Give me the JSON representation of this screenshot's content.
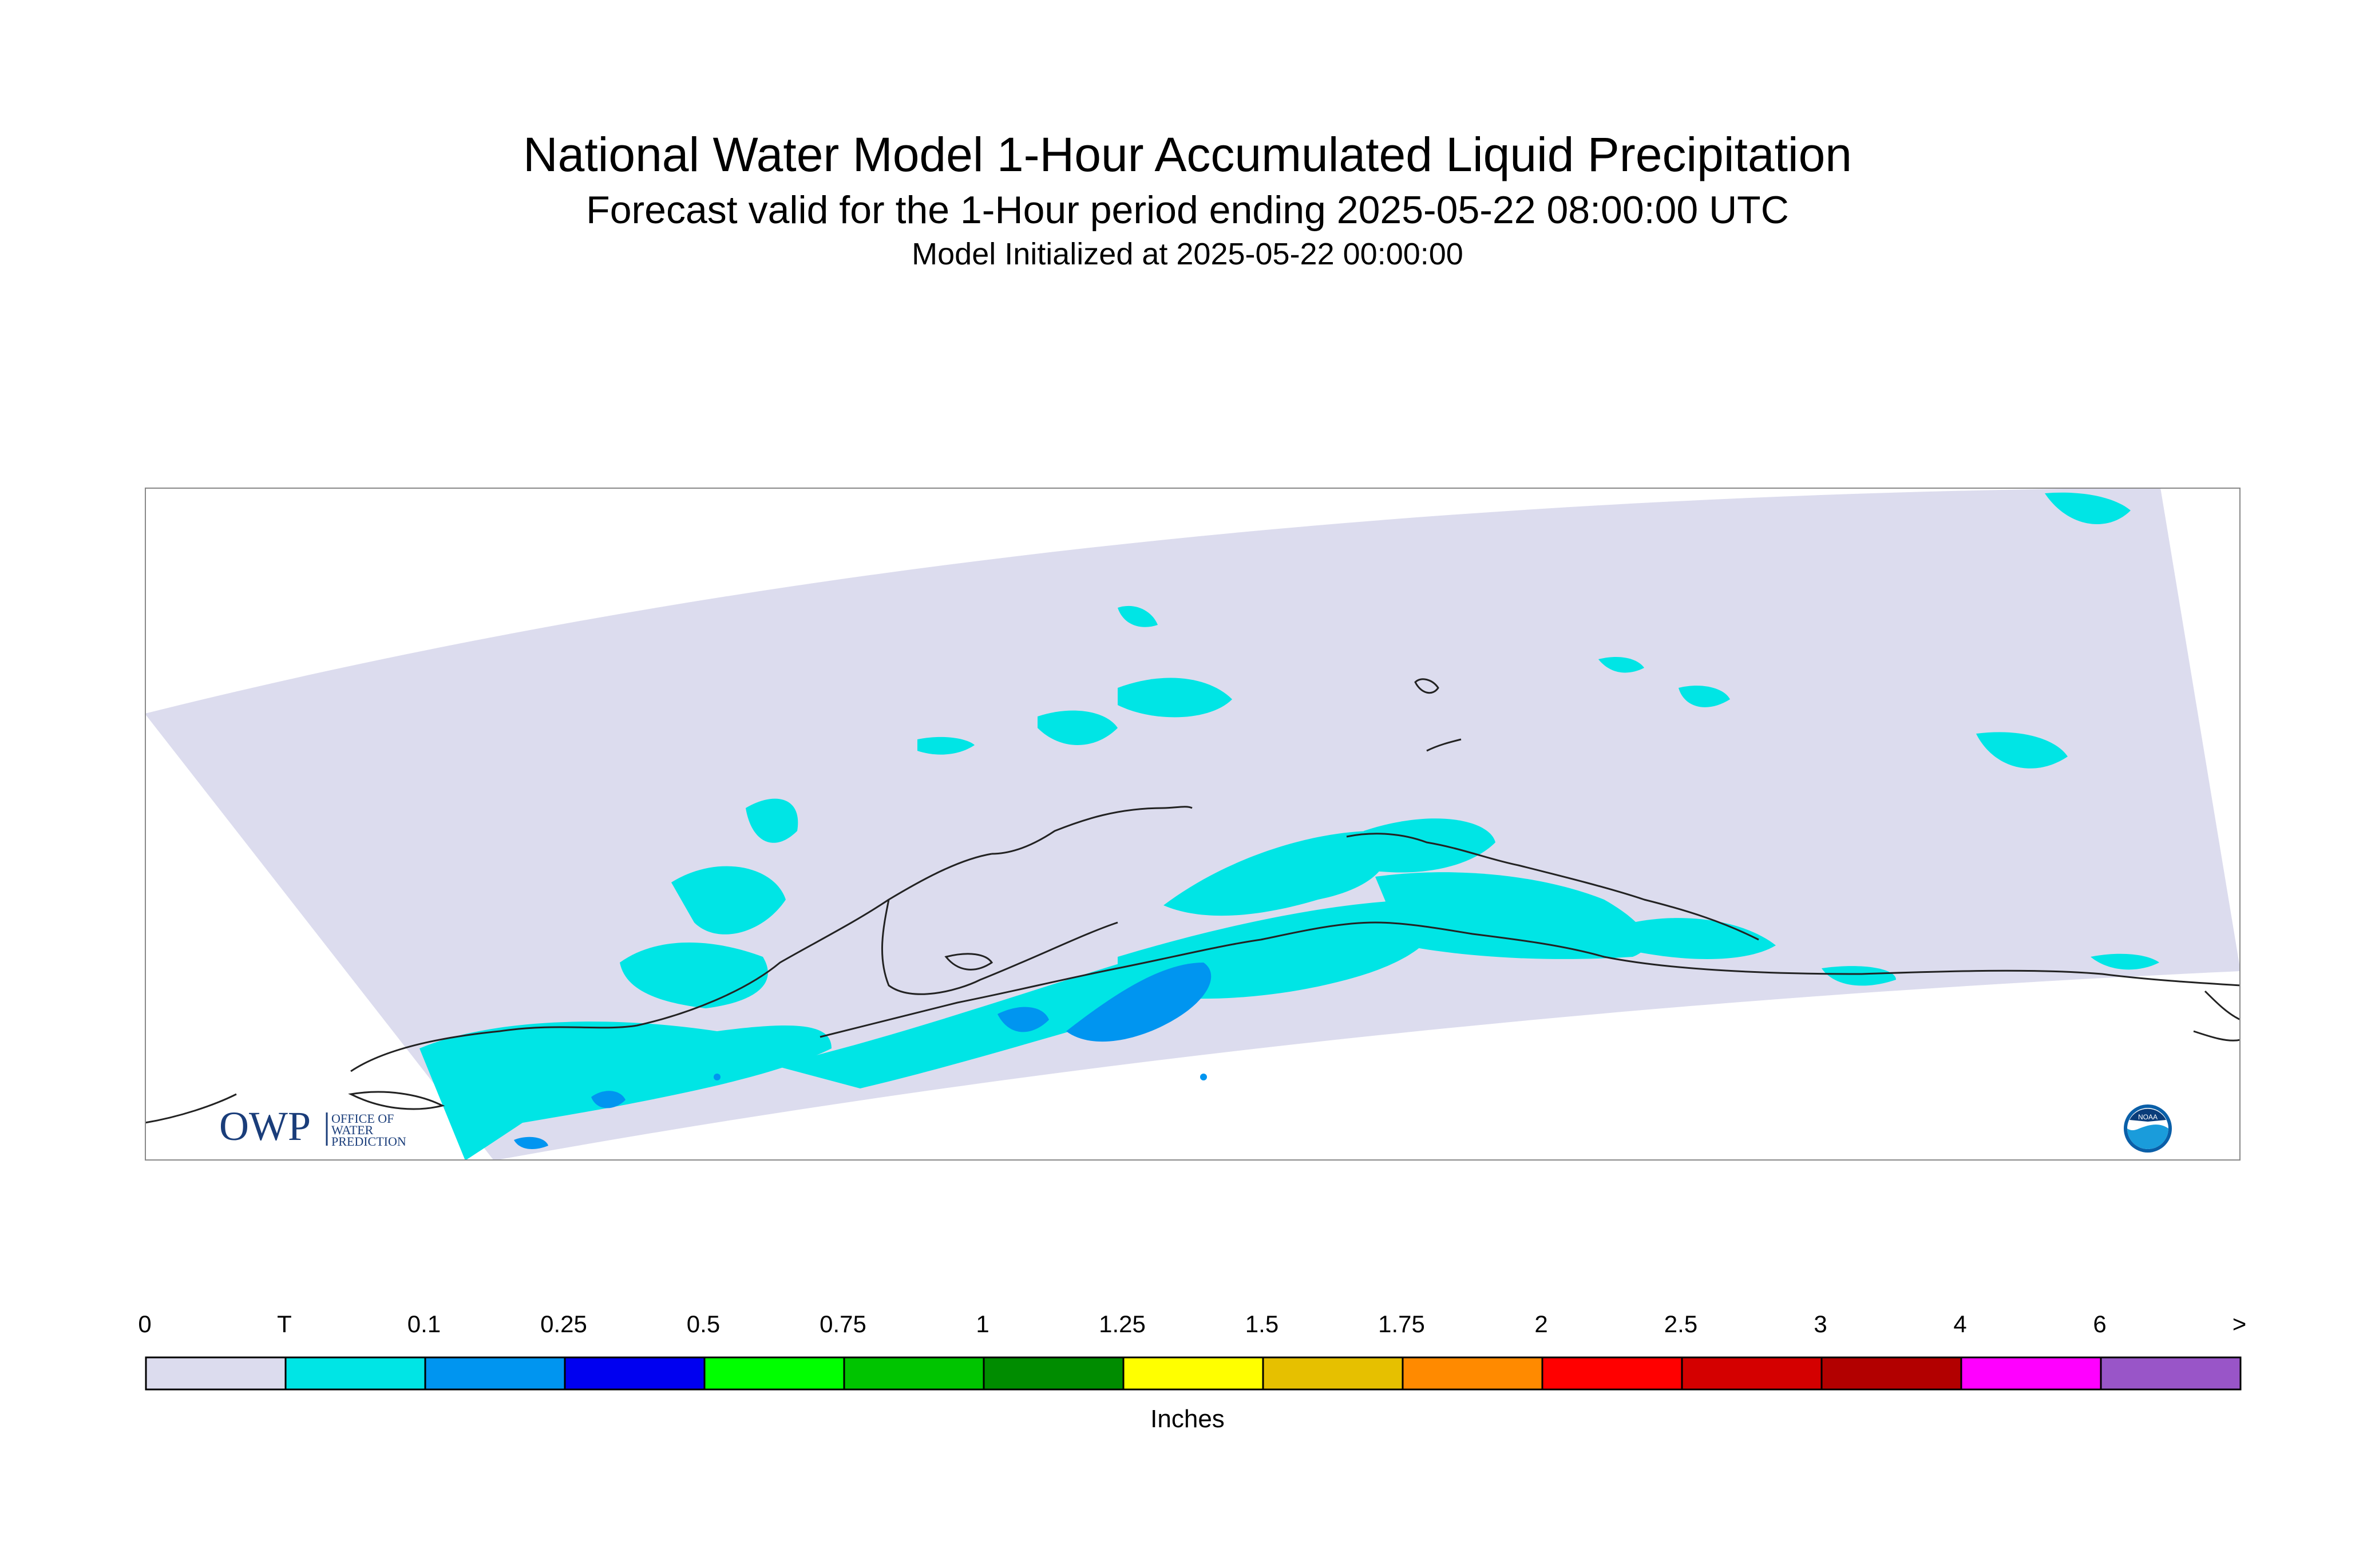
{
  "title": "National Water Model 1-Hour Accumulated Liquid Precipitation",
  "subtitle": "Forecast valid for the 1-Hour period ending 2025-05-22 08:00:00 UTC",
  "init": "Model Initialized at 2025-05-22 00:00:00",
  "logos": {
    "owp_letters": "OWP",
    "owp_text_1": "OFFICE OF",
    "owp_text_2": "WATER",
    "owp_text_3": "PREDICTION",
    "noaa_text": "NOAA"
  },
  "colors": {
    "domain_zero": "#dcdcee",
    "trace": "#00e5e5",
    "light_blue": "#0095f0",
    "coastline": "#222222"
  },
  "legend": {
    "units": "Inches",
    "ticks": [
      "0",
      "T",
      "0.1",
      "0.25",
      "0.5",
      "0.75",
      "1",
      "1.25",
      "1.5",
      "1.75",
      "2",
      "2.5",
      "3",
      "4",
      "6",
      ">"
    ],
    "colors": [
      "#dcdcee",
      "#00e5e5",
      "#0095f0",
      "#0000f0",
      "#00ff00",
      "#00c400",
      "#008c00",
      "#ffff00",
      "#e6c000",
      "#ff8a00",
      "#ff0000",
      "#d40000",
      "#b20000",
      "#ff00ff",
      "#9955c8"
    ]
  }
}
